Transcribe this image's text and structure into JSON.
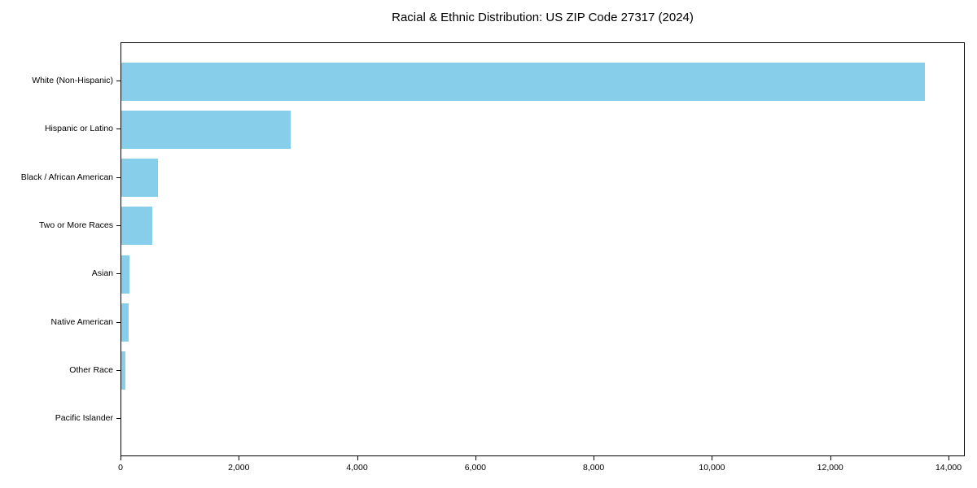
{
  "chart_data": {
    "type": "bar",
    "orientation": "horizontal",
    "title": "Racial & Ethnic Distribution: US ZIP Code 27317 (2024)",
    "categories": [
      "White (Non-Hispanic)",
      "Hispanic or Latino",
      "Black / African American",
      "Two or More Races",
      "Asian",
      "Native American",
      "Other Race",
      "Pacific Islander"
    ],
    "values": [
      13590,
      2860,
      620,
      520,
      140,
      120,
      75,
      0
    ],
    "xlabel": "",
    "ylabel": "",
    "xlim": [
      0,
      14275
    ],
    "x_ticks": [
      0,
      2000,
      4000,
      6000,
      8000,
      10000,
      12000,
      14000
    ],
    "x_tick_labels": [
      "0",
      "2,000",
      "4,000",
      "6,000",
      "8,000",
      "10,000",
      "12,000",
      "14,000"
    ],
    "bar_color": "#87CEEB",
    "background_color": "#ffffff",
    "text_color": "#000000",
    "axis_color": "#000000",
    "grid": false,
    "legend": null
  }
}
